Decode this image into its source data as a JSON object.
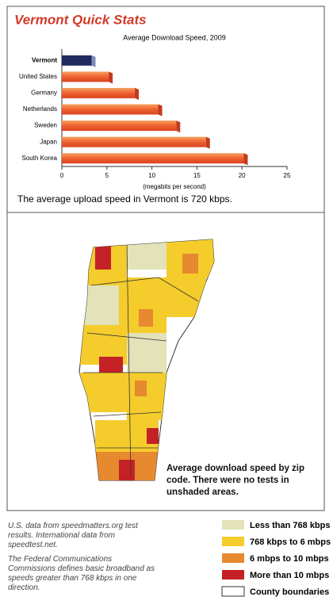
{
  "title": "Vermont Quick Stats",
  "chart_data": {
    "type": "bar",
    "orientation": "horizontal",
    "title": "Average Download Speed, 2009",
    "x_label": "(megabits per second)",
    "categories": [
      "Vermont",
      "United States",
      "Germany",
      "Netherlands",
      "Sweden",
      "Japan",
      "South Korea"
    ],
    "values": [
      3.3,
      5.2,
      8.1,
      10.7,
      12.7,
      16.0,
      20.2
    ],
    "colors": [
      "#1f2a5e",
      "#e8552a",
      "#e8552a",
      "#e8552a",
      "#e8552a",
      "#e8552a",
      "#e8552a"
    ],
    "xlim": [
      0,
      25
    ],
    "xticks": [
      0,
      5,
      10,
      15,
      20,
      25
    ]
  },
  "upload_note": "The average upload speed in Vermont is 720 kbps.",
  "map": {
    "caption": "Average download speed by zip code. There were no tests in unshaded areas.",
    "legend": [
      {
        "label": "Less than 768 kbps",
        "color": "#e3e2b8"
      },
      {
        "label": "768 kbps to 6 mbps",
        "color": "#f4cc2c"
      },
      {
        "label": "6 mbps to 10 mbps",
        "color": "#e7892f"
      },
      {
        "label": "More than 10 mbps",
        "color": "#c42127"
      },
      {
        "label": "County boundaries",
        "color": "#ffffff"
      }
    ]
  },
  "notes": [
    "U.S. data from speedmatters.org test results. International data from speedtest.net.",
    "The Federal Communications Commissions defines basic broadband as speeds greater than 768 kbps in one direction."
  ]
}
